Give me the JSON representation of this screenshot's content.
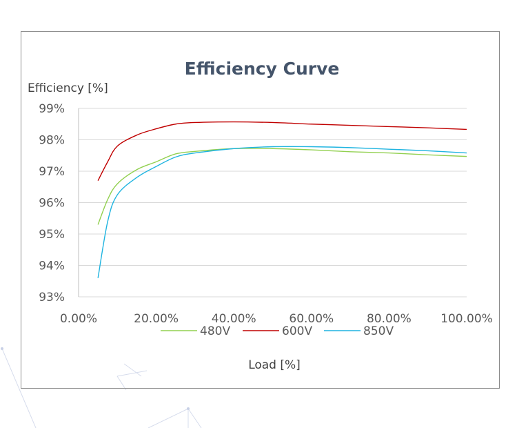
{
  "chart_data": {
    "type": "line",
    "title": "Efficiency Curve",
    "xlabel": "Load [%]",
    "ylabel": "Efficiency [%]",
    "xlim": [
      0,
      100
    ],
    "ylim": [
      93,
      99
    ],
    "x_ticks": [
      "0.00%",
      "20.00%",
      "40.00%",
      "60.00%",
      "80.00%",
      "100.00%"
    ],
    "y_ticks": [
      "93%",
      "94%",
      "95%",
      "96%",
      "97%",
      "98%",
      "99%"
    ],
    "grid": true,
    "legend_position": "bottom",
    "x": [
      5,
      7.5,
      10,
      15,
      20,
      25,
      30,
      40,
      50,
      60,
      70,
      80,
      90,
      100
    ],
    "series": [
      {
        "name": "480V",
        "color": "#92d050",
        "values": [
          95.3,
          96.1,
          96.6,
          97.05,
          97.3,
          97.55,
          97.63,
          97.72,
          97.72,
          97.68,
          97.62,
          97.58,
          97.52,
          97.47
        ]
      },
      {
        "name": "600V",
        "color": "#c00000",
        "values": [
          96.7,
          97.3,
          97.8,
          98.15,
          98.35,
          98.5,
          98.55,
          98.57,
          98.55,
          98.5,
          98.46,
          98.42,
          98.38,
          98.33
        ]
      },
      {
        "name": "850V",
        "color": "#1fb4e0",
        "values": [
          93.6,
          95.4,
          96.25,
          96.8,
          97.15,
          97.45,
          97.58,
          97.72,
          97.78,
          97.78,
          97.75,
          97.7,
          97.65,
          97.58
        ]
      }
    ]
  }
}
